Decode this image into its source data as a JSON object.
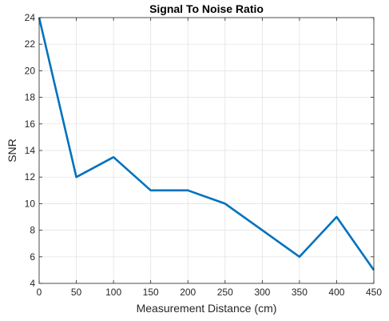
{
  "chart_data": {
    "type": "line",
    "title": "Signal To Noise Ratio",
    "xlabel": "Measurement Distance (cm)",
    "ylabel": "SNR",
    "xlim": [
      0,
      450
    ],
    "ylim": [
      4,
      24
    ],
    "xticks": [
      0,
      50,
      100,
      150,
      200,
      250,
      300,
      350,
      400,
      450
    ],
    "yticks": [
      4,
      6,
      8,
      10,
      12,
      14,
      16,
      18,
      20,
      22,
      24
    ],
    "grid": true,
    "series": [
      {
        "color": "#0072BD",
        "x": [
          0,
          50,
          100,
          150,
          200,
          250,
          300,
          350,
          400,
          450
        ],
        "y": [
          24,
          12,
          13.5,
          11,
          11,
          10,
          8,
          6,
          9,
          5
        ]
      }
    ]
  }
}
